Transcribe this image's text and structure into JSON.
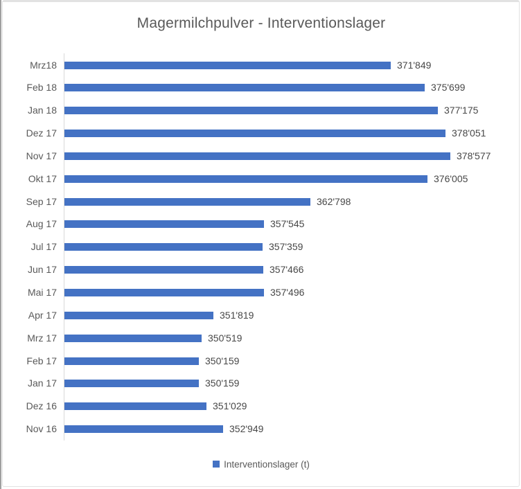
{
  "chart_data": {
    "type": "bar",
    "orientation": "horizontal",
    "title": "Magermilchpulver - Interventionslager",
    "categories": [
      "Mrz18",
      "Feb 18",
      "Jan 18",
      "Dez 17",
      "Nov 17",
      "Okt 17",
      "Sep 17",
      "Aug 17",
      "Jul 17",
      "Jun 17",
      "Mai 17",
      "Apr 17",
      "Mrz 17",
      "Feb 17",
      "Jan 17",
      "Dez 16",
      "Nov 16"
    ],
    "values": [
      371849,
      375699,
      377175,
      378051,
      378577,
      376005,
      362798,
      357545,
      357359,
      357466,
      357496,
      351819,
      350519,
      350159,
      350159,
      351029,
      352949
    ],
    "data_labels": [
      "371'849",
      "375'699",
      "377'175",
      "378'051",
      "378'577",
      "376'005",
      "362'798",
      "357'545",
      "357'359",
      "357'466",
      "357'496",
      "351'819",
      "350'519",
      "350'159",
      "350'159",
      "351'029",
      "352'949"
    ],
    "legend": [
      {
        "label": "Interventionslager (t)",
        "color": "#4472c4"
      }
    ],
    "legend_position": "bottom",
    "grid": false,
    "value_axis_visible": false,
    "xlim": [
      335000,
      385000
    ],
    "bar_color": "#4472c4",
    "axis_line_color": "#d9d9d9",
    "title_color": "#595959"
  }
}
